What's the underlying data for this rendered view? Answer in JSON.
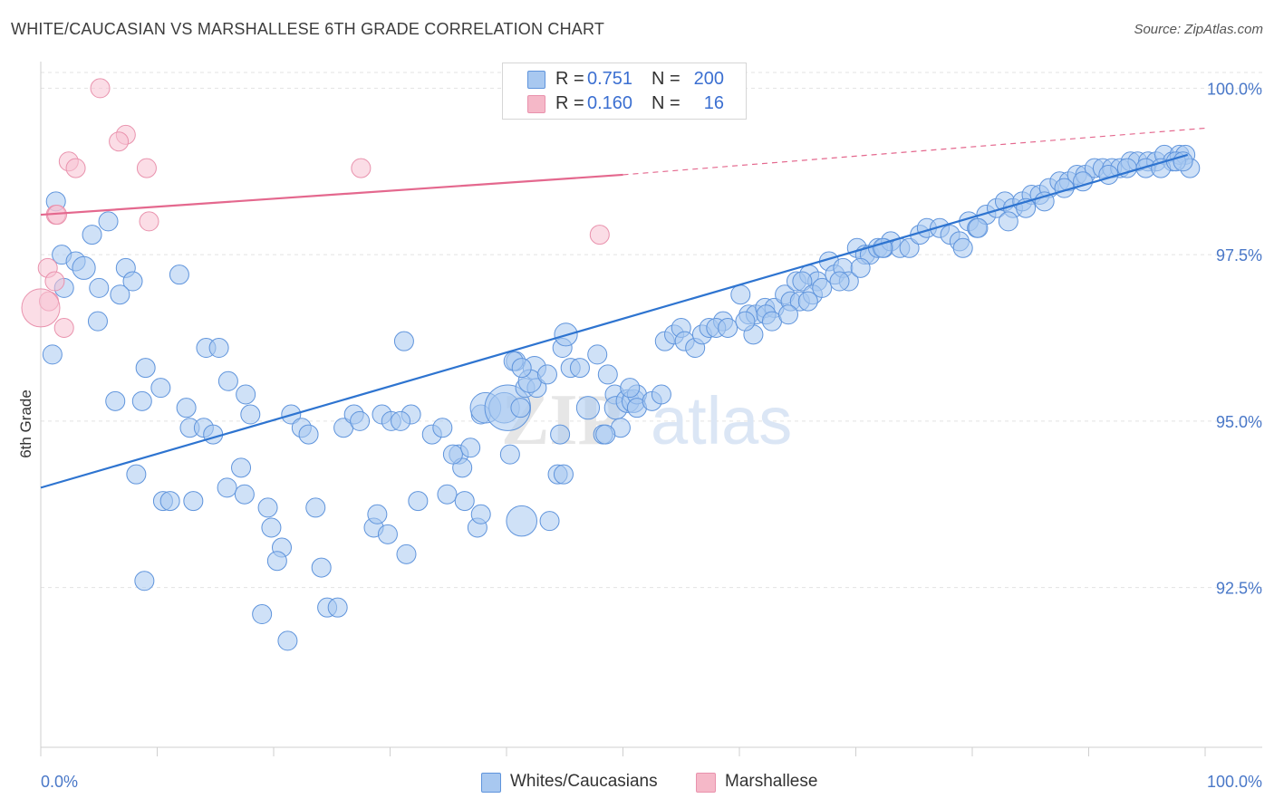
{
  "title": "WHITE/CAUCASIAN VS MARSHALLESE 6TH GRADE CORRELATION CHART",
  "source": "Source: ZipAtlas.com",
  "watermark": {
    "zip": "ZIP",
    "atlas": "atlas"
  },
  "legend": {
    "rows": [
      {
        "r_label": "R =",
        "r_value": "0.751",
        "n_label": "N =",
        "n_value": "200",
        "color": "#a8c8f0"
      },
      {
        "r_label": "R =",
        "r_value": "0.160",
        "n_label": "N =",
        "n_value": "16",
        "color": "#f5b8c8"
      }
    ]
  },
  "bottom_legend": [
    {
      "label": "Whites/Caucasians",
      "color": "#a8c8f0"
    },
    {
      "label": "Marshallese",
      "color": "#f5b8c8"
    }
  ],
  "colors": {
    "blue_fill": "#a8c8f0",
    "blue_stroke": "#5f94dc",
    "blue_line": "#2e74d0",
    "pink_fill": "#f7c1d1",
    "pink_stroke": "#e992ad",
    "pink_line": "#e4688e",
    "grid": "#e3e3e3",
    "axis": "#cfcfcf",
    "tick_label": "#4a78c8"
  },
  "chart_data": {
    "type": "scatter",
    "title": "WHITE/CAUCASIAN VS MARSHALLESE 6TH GRADE CORRELATION CHART",
    "xlabel": "",
    "ylabel": "6th Grade",
    "xlim": [
      0,
      100
    ],
    "ylim": [
      90.1,
      100.4
    ],
    "x_tick_labels": [
      "0.0%",
      "100.0%"
    ],
    "y_ticks": [
      92.5,
      95.0,
      97.5,
      100.0
    ],
    "y_tick_labels": [
      "92.5%",
      "95.0%",
      "97.5%",
      "100.0%"
    ],
    "grid": true,
    "series": [
      {
        "name": "Whites/Caucasians",
        "trend": {
          "x": [
            0,
            98.5
          ],
          "y": [
            94.0,
            99.0
          ],
          "dashed_to": null
        },
        "points": [
          [
            1.3,
            98.3,
            5
          ],
          [
            1.8,
            97.5,
            5
          ],
          [
            3,
            97.4,
            5
          ],
          [
            3.7,
            97.3,
            6
          ],
          [
            4.4,
            97.8,
            5
          ],
          [
            5,
            97.0,
            5
          ],
          [
            5.8,
            98.0,
            5
          ],
          [
            7.3,
            97.3,
            5
          ],
          [
            7.9,
            97.1,
            5
          ],
          [
            6.8,
            96.9,
            5
          ],
          [
            2,
            97.0,
            5
          ],
          [
            4.9,
            96.5,
            5
          ],
          [
            1,
            96.0,
            5
          ],
          [
            11.9,
            97.2,
            5
          ],
          [
            8.7,
            95.3,
            5
          ],
          [
            6.4,
            95.3,
            5
          ],
          [
            9,
            95.8,
            5
          ],
          [
            10.3,
            95.5,
            5
          ],
          [
            12.5,
            95.2,
            5
          ],
          [
            14.2,
            96.1,
            5
          ],
          [
            15.3,
            96.1,
            5
          ],
          [
            16.1,
            95.6,
            5
          ],
          [
            17.6,
            95.4,
            5
          ],
          [
            18,
            95.1,
            5
          ],
          [
            12.8,
            94.9,
            5
          ],
          [
            14,
            94.9,
            5
          ],
          [
            14.8,
            94.8,
            5
          ],
          [
            8.2,
            94.2,
            5
          ],
          [
            10.5,
            93.8,
            5
          ],
          [
            11.1,
            93.8,
            5
          ],
          [
            13.1,
            93.8,
            5
          ],
          [
            16,
            94.0,
            5
          ],
          [
            17.2,
            94.3,
            5
          ],
          [
            17.5,
            93.9,
            5
          ],
          [
            19.5,
            93.7,
            5
          ],
          [
            19.8,
            93.4,
            5
          ],
          [
            20.7,
            93.1,
            5
          ],
          [
            20.3,
            92.9,
            5
          ],
          [
            21.5,
            95.1,
            5
          ],
          [
            22.4,
            94.9,
            5
          ],
          [
            23,
            94.8,
            5
          ],
          [
            23.6,
            93.7,
            5
          ],
          [
            24.1,
            92.8,
            5
          ],
          [
            24.6,
            92.2,
            5
          ],
          [
            25.5,
            92.2,
            5
          ],
          [
            26,
            94.9,
            5
          ],
          [
            29.3,
            95.1,
            5
          ],
          [
            31.8,
            95.1,
            5
          ],
          [
            26.9,
            95.1,
            5
          ],
          [
            27.4,
            95.0,
            5
          ],
          [
            30.1,
            95.0,
            5
          ],
          [
            30.9,
            95.0,
            5
          ],
          [
            28.6,
            93.4,
            5
          ],
          [
            29.8,
            93.3,
            5
          ],
          [
            28.9,
            93.6,
            5
          ],
          [
            32.4,
            93.8,
            5
          ],
          [
            34.9,
            93.9,
            5
          ],
          [
            36.4,
            93.8,
            5
          ],
          [
            31.4,
            93.0,
            5
          ],
          [
            37.5,
            93.4,
            5
          ],
          [
            37.8,
            93.6,
            5
          ],
          [
            19,
            92.1,
            5
          ],
          [
            21.2,
            91.7,
            5
          ],
          [
            8.9,
            92.6,
            5
          ],
          [
            31.2,
            96.2,
            5
          ],
          [
            33.6,
            94.8,
            5
          ],
          [
            34.5,
            94.9,
            5
          ],
          [
            35.9,
            94.5,
            5
          ],
          [
            36.2,
            94.3,
            5
          ],
          [
            35.4,
            94.5,
            5
          ],
          [
            36.9,
            94.6,
            5
          ],
          [
            37.8,
            95.1,
            5
          ],
          [
            40.3,
            94.5,
            5
          ],
          [
            38.2,
            95.2,
            8
          ],
          [
            39.8,
            95.2,
            8
          ],
          [
            40.1,
            95.2,
            12
          ],
          [
            41.2,
            95.2,
            5
          ],
          [
            40.8,
            95.9,
            5
          ],
          [
            41.6,
            95.5,
            5
          ],
          [
            42.4,
            95.8,
            6
          ],
          [
            42.6,
            95.5,
            5
          ],
          [
            40.6,
            95.9,
            5
          ],
          [
            42,
            95.6,
            6
          ],
          [
            41.3,
            95.8,
            5
          ],
          [
            43.5,
            95.7,
            5
          ],
          [
            44.8,
            96.1,
            5
          ],
          [
            45.1,
            96.3,
            6
          ],
          [
            44.6,
            94.8,
            5
          ],
          [
            45.5,
            95.8,
            5
          ],
          [
            46.3,
            95.8,
            5
          ],
          [
            47,
            95.2,
            6
          ],
          [
            47.8,
            96.0,
            5
          ],
          [
            48.7,
            95.7,
            5
          ],
          [
            49.3,
            95.4,
            5
          ],
          [
            49.4,
            95.2,
            6
          ],
          [
            50.4,
            95.3,
            6
          ],
          [
            50.9,
            95.3,
            6
          ],
          [
            51.2,
            95.4,
            5
          ],
          [
            49.8,
            94.9,
            5
          ],
          [
            44.4,
            94.2,
            5
          ],
          [
            44.9,
            94.2,
            5
          ],
          [
            41.3,
            93.5,
            8
          ],
          [
            43.7,
            93.5,
            5
          ],
          [
            48.3,
            94.8,
            5
          ],
          [
            48.5,
            94.8,
            5
          ],
          [
            50.6,
            95.5,
            5
          ],
          [
            51.2,
            95.2,
            5
          ],
          [
            52.5,
            95.3,
            5
          ],
          [
            53.3,
            95.4,
            5
          ],
          [
            53.6,
            96.2,
            5
          ],
          [
            54.4,
            96.3,
            5
          ],
          [
            55,
            96.4,
            5
          ],
          [
            55.3,
            96.2,
            5
          ],
          [
            56.2,
            96.1,
            5
          ],
          [
            56.8,
            96.3,
            5
          ],
          [
            57.4,
            96.4,
            5
          ],
          [
            58.6,
            96.5,
            5
          ],
          [
            58,
            96.4,
            5
          ],
          [
            59,
            96.4,
            5
          ],
          [
            60.1,
            96.9,
            5
          ],
          [
            60.8,
            96.6,
            5
          ],
          [
            61.4,
            96.6,
            5
          ],
          [
            62.2,
            96.7,
            5
          ],
          [
            63,
            96.7,
            5
          ],
          [
            63.9,
            96.9,
            5
          ],
          [
            61.2,
            96.3,
            5
          ],
          [
            62.3,
            96.6,
            5
          ],
          [
            64.4,
            96.8,
            5
          ],
          [
            64.9,
            97.1,
            5
          ],
          [
            65.2,
            96.8,
            5
          ],
          [
            66,
            97.2,
            5
          ],
          [
            66.7,
            97.1,
            5
          ],
          [
            65.4,
            97.1,
            5
          ],
          [
            66.3,
            96.9,
            5
          ],
          [
            67.1,
            97.0,
            5
          ],
          [
            67.7,
            97.4,
            5
          ],
          [
            68.2,
            97.2,
            5
          ],
          [
            68.9,
            97.3,
            5
          ],
          [
            69.4,
            97.1,
            5
          ],
          [
            70.1,
            97.6,
            5
          ],
          [
            70.8,
            97.5,
            5
          ],
          [
            71.2,
            97.5,
            5
          ],
          [
            71.9,
            97.6,
            5
          ],
          [
            72.4,
            97.6,
            5
          ],
          [
            73,
            97.7,
            5
          ],
          [
            73.8,
            97.6,
            5
          ],
          [
            74.6,
            97.6,
            5
          ],
          [
            75.5,
            97.8,
            5
          ],
          [
            76.1,
            97.9,
            5
          ],
          [
            77.2,
            97.9,
            5
          ],
          [
            78.1,
            97.8,
            5
          ],
          [
            78.9,
            97.7,
            5
          ],
          [
            79.7,
            98.0,
            5
          ],
          [
            80.4,
            97.9,
            5
          ],
          [
            81.2,
            98.1,
            5
          ],
          [
            82.1,
            98.2,
            5
          ],
          [
            82.8,
            98.3,
            5
          ],
          [
            83.5,
            98.2,
            5
          ],
          [
            84.3,
            98.3,
            5
          ],
          [
            85.1,
            98.4,
            5
          ],
          [
            85.8,
            98.4,
            5
          ],
          [
            86.6,
            98.5,
            5
          ],
          [
            87.5,
            98.6,
            5
          ],
          [
            88.3,
            98.6,
            5
          ],
          [
            89,
            98.7,
            5
          ],
          [
            89.7,
            98.7,
            5
          ],
          [
            90.5,
            98.8,
            5
          ],
          [
            91.2,
            98.8,
            5
          ],
          [
            92,
            98.8,
            5
          ],
          [
            92.7,
            98.8,
            5
          ],
          [
            93.6,
            98.9,
            5
          ],
          [
            94.2,
            98.9,
            5
          ],
          [
            95.1,
            98.9,
            5
          ],
          [
            95.8,
            98.9,
            5
          ],
          [
            96.5,
            99.0,
            5
          ],
          [
            97.2,
            98.9,
            5
          ],
          [
            97.8,
            99.0,
            5
          ],
          [
            98.3,
            99.0,
            5
          ],
          [
            98.7,
            98.8,
            5
          ],
          [
            72.3,
            97.6,
            5
          ],
          [
            79.2,
            97.6,
            5
          ],
          [
            80.5,
            97.9,
            5
          ],
          [
            83.1,
            98.0,
            5
          ],
          [
            84.6,
            98.2,
            5
          ],
          [
            86.2,
            98.3,
            5
          ],
          [
            87.9,
            98.5,
            5
          ],
          [
            89.5,
            98.6,
            5
          ],
          [
            91.7,
            98.7,
            5
          ],
          [
            93.3,
            98.8,
            5
          ],
          [
            94.9,
            98.8,
            5
          ],
          [
            96.2,
            98.8,
            5
          ],
          [
            97.5,
            98.9,
            5
          ],
          [
            98.1,
            98.9,
            5
          ],
          [
            60.5,
            96.5,
            5
          ],
          [
            62.8,
            96.5,
            5
          ],
          [
            64.2,
            96.6,
            5
          ],
          [
            65.9,
            96.8,
            5
          ],
          [
            68.6,
            97.1,
            5
          ],
          [
            70.4,
            97.3,
            5
          ]
        ]
      },
      {
        "name": "Marshallese",
        "trend": {
          "x": [
            0,
            50
          ],
          "y": [
            98.1,
            98.7
          ],
          "dashed_to": [
            100,
            99.4
          ]
        },
        "points": [
          [
            5.1,
            100.0,
            5
          ],
          [
            7.3,
            99.3,
            5
          ],
          [
            6.7,
            99.2,
            5
          ],
          [
            2.4,
            98.9,
            5
          ],
          [
            3,
            98.8,
            5
          ],
          [
            9.1,
            98.8,
            5
          ],
          [
            27.5,
            98.8,
            5
          ],
          [
            9.3,
            98.0,
            5
          ],
          [
            1.3,
            98.1,
            5
          ],
          [
            1.4,
            98.1,
            5
          ],
          [
            48,
            97.8,
            5
          ],
          [
            0.6,
            97.3,
            5
          ],
          [
            1.2,
            97.1,
            5
          ],
          [
            0.7,
            96.8,
            5
          ],
          [
            2,
            96.4,
            5
          ],
          [
            0,
            96.7,
            10
          ]
        ]
      }
    ]
  }
}
